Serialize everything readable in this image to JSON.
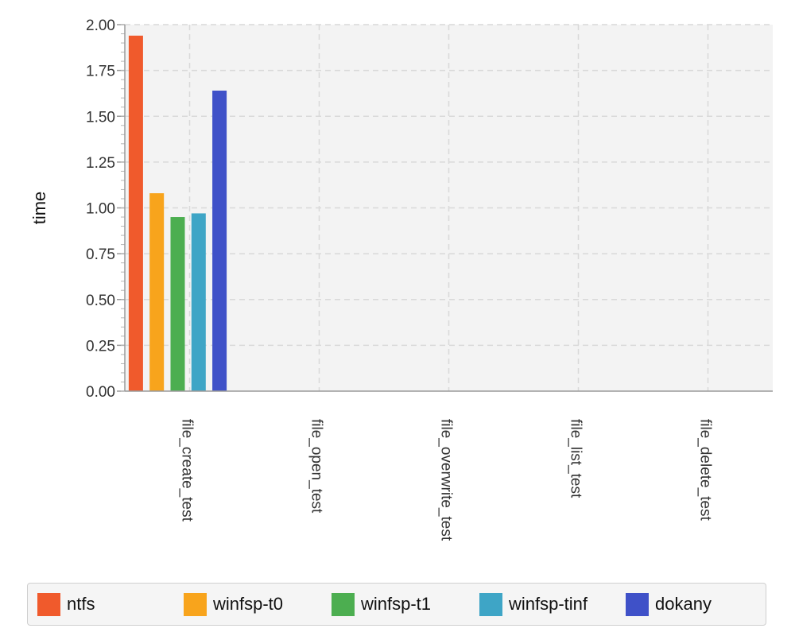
{
  "chart_data": {
    "type": "bar",
    "categories": [
      "file_create_test",
      "file_open_test",
      "file_overwrite_test",
      "file_list_test",
      "file_delete_test"
    ],
    "series": [
      {
        "name": "ntfs",
        "color": "#f05a2c",
        "values": [
          1.94,
          0,
          0,
          0,
          0
        ]
      },
      {
        "name": "winfsp-t0",
        "color": "#f8a41c",
        "values": [
          1.08,
          0,
          0,
          0,
          0
        ]
      },
      {
        "name": "winfsp-t1",
        "color": "#4cae50",
        "values": [
          0.95,
          0,
          0,
          0,
          0
        ]
      },
      {
        "name": "winfsp-tinf",
        "color": "#3ea5c6",
        "values": [
          0.97,
          0,
          0,
          0,
          0
        ]
      },
      {
        "name": "dokany",
        "color": "#3f51c8",
        "values": [
          1.64,
          0,
          0,
          0,
          0
        ]
      }
    ],
    "ylabel": "time",
    "xlabel": "",
    "ylim": [
      0,
      2.0
    ],
    "yticks": [
      "0.00",
      "0.25",
      "0.50",
      "0.75",
      "1.00",
      "1.25",
      "1.50",
      "1.75",
      "2.00"
    ],
    "grid": true,
    "legend_position": "bottom"
  }
}
